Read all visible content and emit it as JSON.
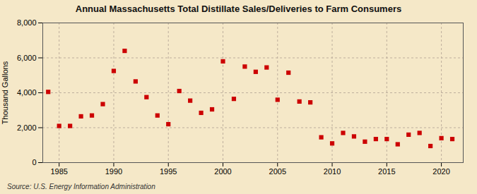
{
  "chart_data": {
    "type": "scatter",
    "title": "Annual Massachusetts Total Distillate Sales/Deliveries to Farm Consumers",
    "ylabel": "Thousand Gallons",
    "source": "Source: U.S. Energy Information Administration",
    "x": [
      1984,
      1985,
      1986,
      1987,
      1988,
      1989,
      1990,
      1991,
      1992,
      1993,
      1994,
      1995,
      1996,
      1997,
      1998,
      1999,
      2000,
      2001,
      2002,
      2003,
      2004,
      2005,
      2006,
      2007,
      2008,
      2009,
      2010,
      2011,
      2012,
      2013,
      2014,
      2015,
      2016,
      2017,
      2018,
      2019,
      2020,
      2021
    ],
    "values": [
      4050,
      2100,
      2100,
      2650,
      2700,
      3350,
      5250,
      6400,
      4650,
      3750,
      2700,
      2200,
      4100,
      3550,
      2850,
      3050,
      5800,
      3650,
      5500,
      5200,
      5450,
      3600,
      5150,
      3500,
      3450,
      1450,
      1100,
      1700,
      1500,
      1200,
      1350,
      1350,
      1050,
      1600,
      1700,
      950,
      1400,
      1350
    ],
    "color": "#cc0000",
    "marker": "square",
    "xlim": [
      1983.5,
      2022
    ],
    "xticks": [
      1985,
      1990,
      1995,
      2000,
      2005,
      2010,
      2015,
      2020
    ],
    "ylim": [
      0,
      8000
    ],
    "yticks": [
      0,
      {
        "value": 2000,
        "label": "2,000"
      },
      {
        "value": 4000,
        "label": "4,000"
      },
      {
        "value": 6000,
        "label": "6,000"
      },
      {
        "value": 8000,
        "label": "8,000"
      }
    ],
    "grid": true
  }
}
